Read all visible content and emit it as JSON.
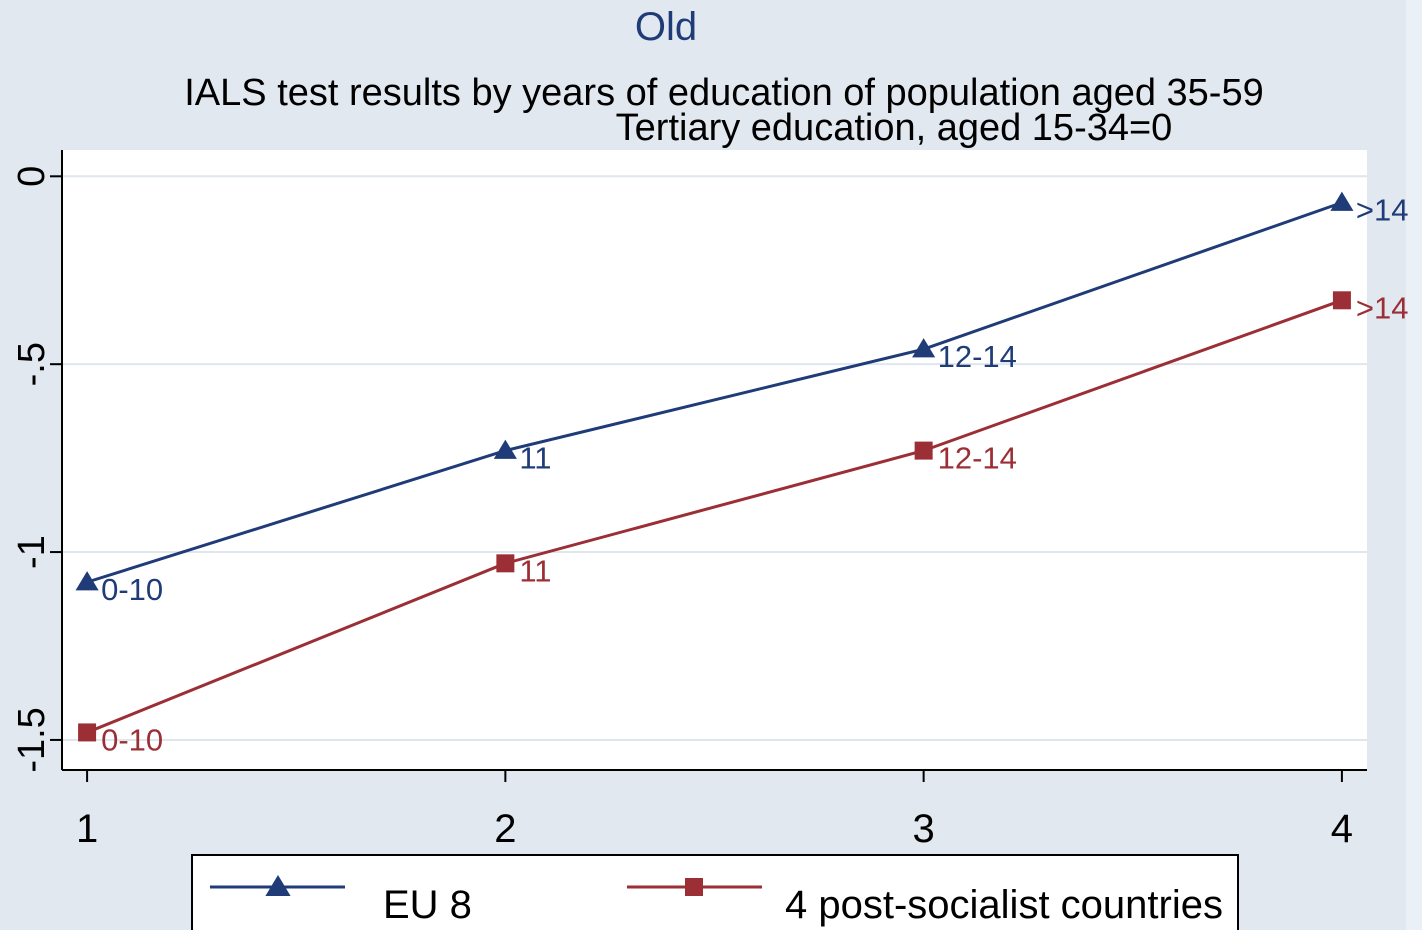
{
  "colors": {
    "background": "#e2e8f0",
    "plot_background": "#ffffff",
    "right_strip": "#eaf0f6",
    "gridline": "#dfe6ee",
    "axis": "#000000",
    "eu8": "#1f3c78",
    "post_socialist": "#9b2f35",
    "title": "#1f3c78"
  },
  "chart_data": {
    "type": "line",
    "title": "Old",
    "subtitle": "IALS test results by years of education of population  aged  35-59",
    "subtitle2": "Tertiary education, aged 15-34=0",
    "xlabel": "",
    "ylabel": "",
    "x": [
      1,
      2,
      3,
      4
    ],
    "xlim": [
      0.94,
      4.06
    ],
    "ylim": [
      -1.58,
      0.07
    ],
    "x_ticks": [
      1,
      2,
      3,
      4
    ],
    "x_tick_labels": [
      "1",
      "2",
      "3",
      "4"
    ],
    "y_ticks": [
      0,
      -0.5,
      -1,
      -1.5
    ],
    "y_tick_labels": [
      "0",
      "-.5",
      "-1",
      "-1.5"
    ],
    "grid": true,
    "legend_position": "bottom",
    "series": [
      {
        "name": "EU 8",
        "marker": "triangle",
        "values": [
          -1.08,
          -0.73,
          -0.46,
          -0.07
        ],
        "point_labels": [
          "0-10",
          "11",
          "12-14",
          ">14"
        ]
      },
      {
        "name": "4 post-socialist countries",
        "marker": "square",
        "values": [
          -1.48,
          -1.03,
          -0.73,
          -0.33
        ],
        "point_labels": [
          "0-10",
          "11",
          "12-14",
          ">14"
        ]
      }
    ]
  }
}
